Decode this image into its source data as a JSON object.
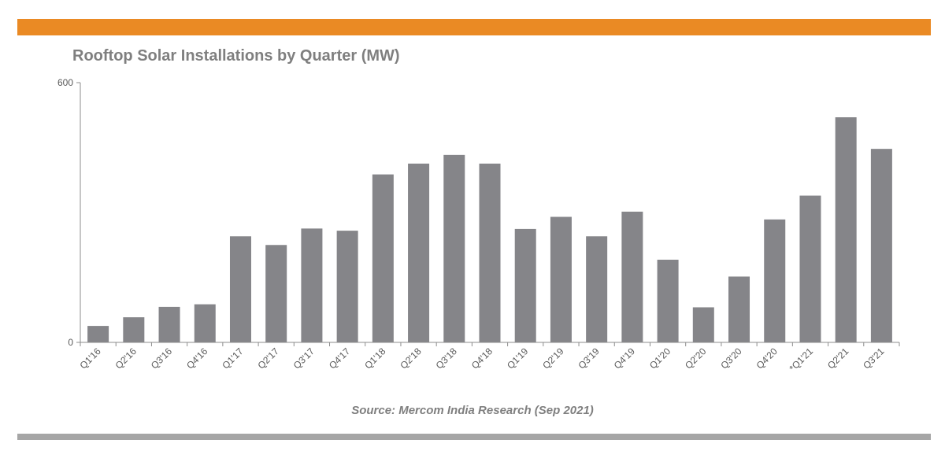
{
  "colors": {
    "accent_band": "#ea8a24",
    "footer_band": "#a6a6a6",
    "bar": "#858589",
    "axis": "#8c8c8c"
  },
  "source": "Source: Mercom India Research (Sep 2021)",
  "chart_data": {
    "type": "bar",
    "title": "Rooftop Solar Installations by Quarter (MW)",
    "xlabel": "",
    "ylabel": "",
    "ylim": [
      0,
      600
    ],
    "yticks": [
      "0",
      "600"
    ],
    "grid": false,
    "legend": "none",
    "categories": [
      "Q1'16",
      "Q2'16",
      "Q3'16",
      "Q4'16",
      "Q1'17",
      "Q2'17",
      "Q3'17",
      "Q4'17",
      "Q1'18",
      "Q2'18",
      "Q3'18",
      "Q4'18",
      "Q1'19",
      "Q2'19",
      "Q3'19",
      "Q4'19",
      "Q1'20",
      "Q2'20",
      "Q3'20",
      "Q4'20",
      "*Q1'21",
      "Q2'21",
      "Q3'21"
    ],
    "values": [
      38,
      58,
      82,
      88,
      245,
      225,
      263,
      258,
      388,
      413,
      433,
      413,
      262,
      290,
      245,
      302,
      191,
      81,
      152,
      284,
      339,
      520,
      447
    ]
  }
}
